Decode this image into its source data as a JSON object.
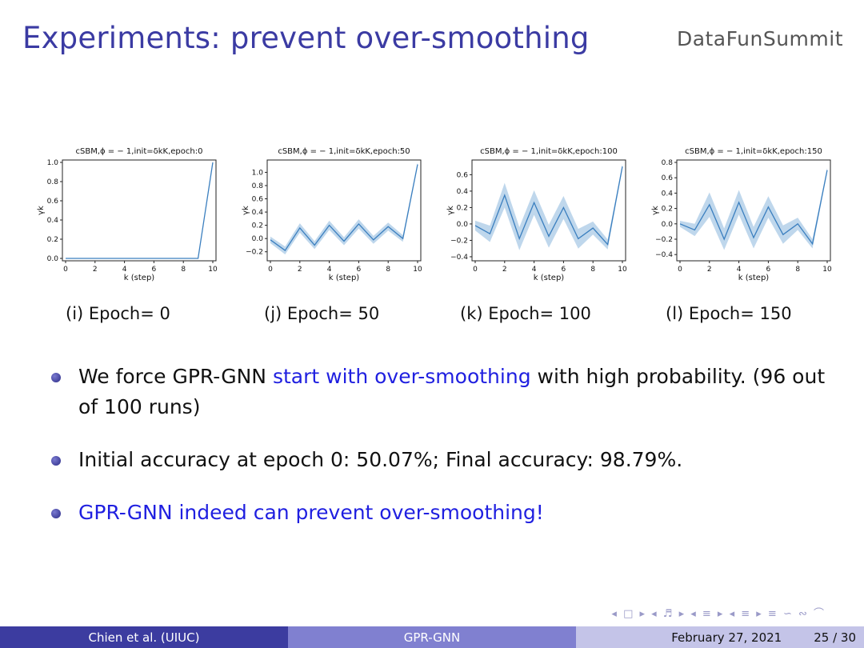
{
  "slide": {
    "title": "Experiments: prevent over-smoothing",
    "brand": "DataFunSummit",
    "captions": [
      "(i) Epoch= 0",
      "(j) Epoch= 50",
      "(k) Epoch= 100",
      "(l) Epoch= 150"
    ],
    "bullets": [
      {
        "pre": "We force GPR-GNN ",
        "hl": "start with over-smoothing",
        "post": " with high probability. (96 out of 100 runs)"
      },
      {
        "pre": "Initial accuracy at epoch 0: 50.07%; Final accuracy: 98.79%.",
        "hl": "",
        "post": ""
      },
      {
        "pre": "",
        "hl": "GPR-GNN indeed can prevent over-smoothing!",
        "post": ""
      }
    ],
    "nav_symbols": "◂ □ ▸ ◂ ♬ ▸ ◂ ≡ ▸ ◂ ≡ ▸   ≡   ∽ ∾ ⌒",
    "footer": {
      "author": "Chien et al.  (UIUC)",
      "short_title": "GPR-GNN",
      "date": "February 27, 2021",
      "page": "25 / 30"
    }
  },
  "chart_data": [
    {
      "type": "line",
      "title": "cSBM,ϕ = − 1,init=δkK,epoch:0",
      "xlabel": "k (step)",
      "ylabel": "γk",
      "x": [
        0,
        1,
        2,
        3,
        4,
        5,
        6,
        7,
        8,
        9,
        10
      ],
      "values": [
        0,
        0,
        0,
        0,
        0,
        0,
        0,
        0,
        0,
        0,
        1.0
      ],
      "band": [
        0,
        0,
        0,
        0,
        0,
        0,
        0,
        0,
        0,
        0,
        0
      ],
      "xlim": [
        0,
        10
      ],
      "ylim": [
        0,
        1.0
      ],
      "yticks": [
        0.0,
        0.2,
        0.4,
        0.6,
        0.8,
        1.0
      ],
      "xticks": [
        0,
        2,
        4,
        6,
        8,
        10
      ]
    },
    {
      "type": "line",
      "title": "cSBM,ϕ = − 1,init=δkK,epoch:50",
      "xlabel": "k (step)",
      "ylabel": "γk",
      "x": [
        0,
        1,
        2,
        3,
        4,
        5,
        6,
        7,
        8,
        9,
        10
      ],
      "values": [
        -0.02,
        -0.18,
        0.16,
        -0.1,
        0.2,
        -0.04,
        0.22,
        -0.02,
        0.18,
        0.0,
        1.12
      ],
      "band": [
        0.05,
        0.06,
        0.07,
        0.06,
        0.07,
        0.06,
        0.07,
        0.06,
        0.06,
        0.05,
        0.03
      ],
      "xlim": [
        0,
        10
      ],
      "ylim": [
        -0.3,
        1.15
      ],
      "yticks": [
        -0.2,
        0.0,
        0.2,
        0.4,
        0.6,
        0.8,
        1.0
      ],
      "xticks": [
        0,
        2,
        4,
        6,
        8,
        10
      ]
    },
    {
      "type": "line",
      "title": "cSBM,ϕ = − 1,init=δkK,epoch:100",
      "xlabel": "k (step)",
      "ylabel": "γk",
      "x": [
        0,
        1,
        2,
        3,
        4,
        5,
        6,
        7,
        8,
        9,
        10
      ],
      "values": [
        -0.02,
        -0.12,
        0.35,
        -0.18,
        0.26,
        -0.15,
        0.2,
        -0.18,
        -0.05,
        -0.25,
        0.7
      ],
      "band": [
        0.06,
        0.1,
        0.15,
        0.14,
        0.15,
        0.14,
        0.14,
        0.12,
        0.08,
        0.06,
        0.03
      ],
      "xlim": [
        0,
        10
      ],
      "ylim": [
        -0.42,
        0.75
      ],
      "yticks": [
        -0.4,
        -0.2,
        0.0,
        0.2,
        0.4,
        0.6
      ],
      "xticks": [
        0,
        2,
        4,
        6,
        8,
        10
      ]
    },
    {
      "type": "line",
      "title": "cSBM,ϕ = − 1,init=δkK,epoch:150",
      "xlabel": "k (step)",
      "ylabel": "γk",
      "x": [
        0,
        1,
        2,
        3,
        4,
        5,
        6,
        7,
        8,
        9,
        10
      ],
      "values": [
        0.0,
        -0.08,
        0.25,
        -0.2,
        0.28,
        -0.18,
        0.22,
        -0.14,
        0.0,
        -0.26,
        0.7
      ],
      "band": [
        0.04,
        0.08,
        0.16,
        0.14,
        0.16,
        0.14,
        0.14,
        0.12,
        0.08,
        0.06,
        0.03
      ],
      "xlim": [
        0,
        10
      ],
      "ylim": [
        -0.45,
        0.8
      ],
      "yticks": [
        -0.4,
        -0.2,
        0.0,
        0.2,
        0.4,
        0.6,
        0.8
      ],
      "xticks": [
        0,
        2,
        4,
        6,
        8,
        10
      ]
    }
  ]
}
